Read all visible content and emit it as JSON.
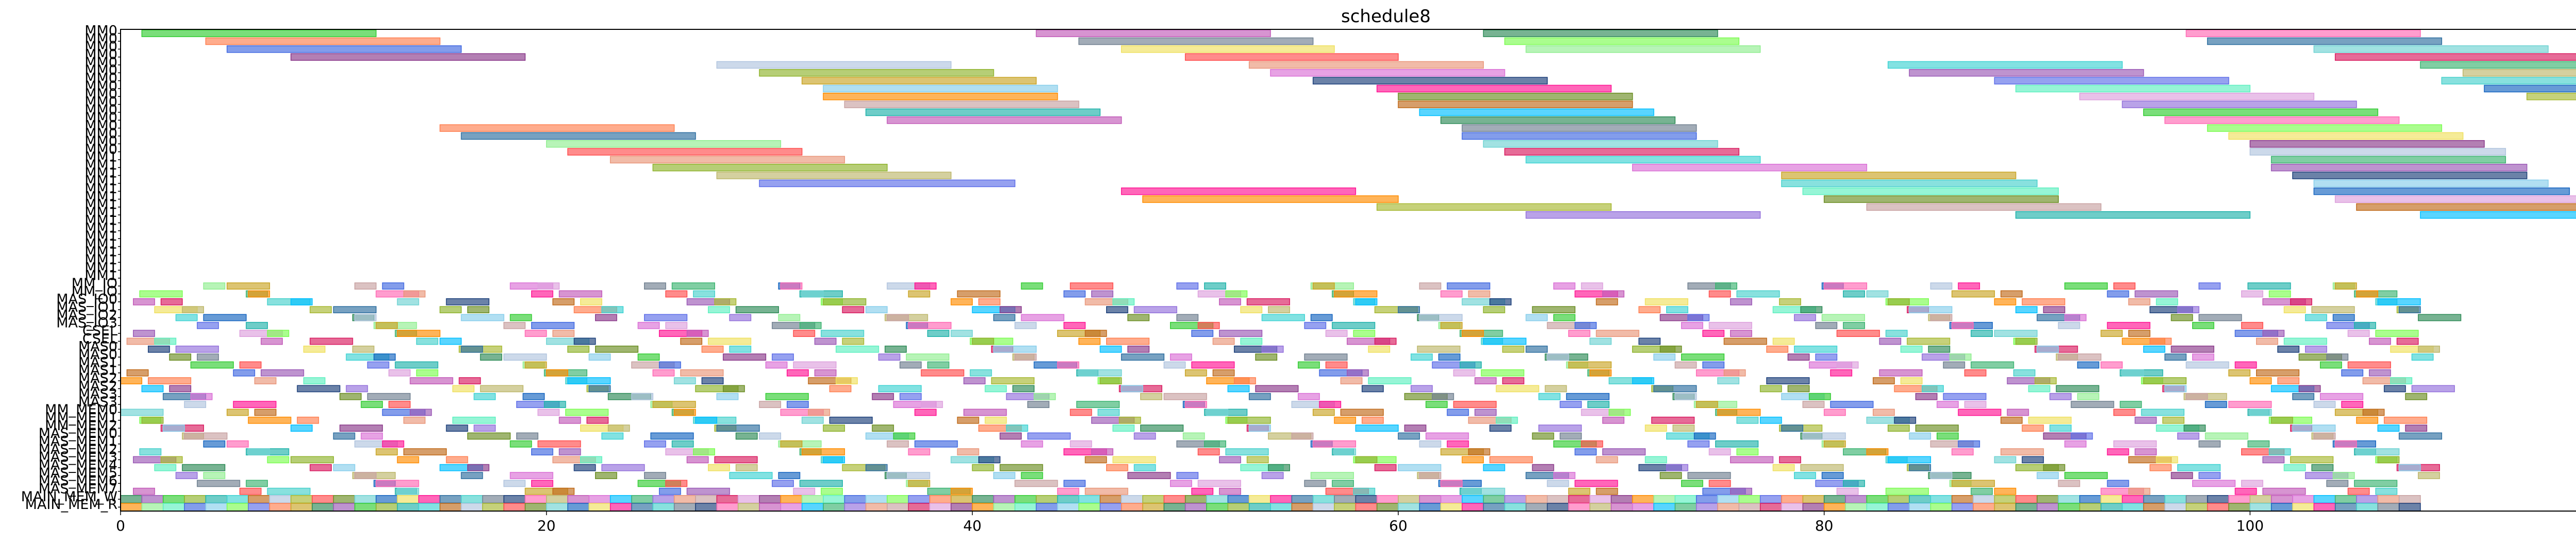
{
  "chart_data": {
    "type": "gantt",
    "title": "schedule8",
    "xlabel": "",
    "ylabel": "",
    "xlim": [
      0,
      118.5
    ],
    "x_ticks": [
      0,
      20,
      40,
      60,
      80,
      100
    ],
    "x_tick_labels": [
      "0",
      "20",
      "40",
      "60",
      "80",
      "100"
    ],
    "grid": false,
    "legend": "none",
    "rows": [
      "MM0",
      "MM0",
      "MM0",
      "MM0",
      "MM0",
      "MM0",
      "MM0",
      "MM0",
      "MM0",
      "MM0",
      "MM0",
      "MM0",
      "MM0",
      "MM0",
      "MM0",
      "MM0",
      "MM1",
      "MM1",
      "MM1",
      "MM1",
      "MM1",
      "MM1",
      "MM1",
      "MM1",
      "MM1",
      "MM1",
      "MM1",
      "MM1",
      "MM1",
      "MM1",
      "MM1",
      "MM1",
      "MM_IO",
      "MM_IO",
      "MAS_IO0",
      "MAS_IO1",
      "MAS_IO2",
      "MAS_IO3",
      "CSEL",
      "CSEL",
      "MAS0",
      "MAS0",
      "MAS1",
      "MAS1",
      "MAS2",
      "MAS2",
      "MAS3",
      "MAS3",
      "MM_MEM0",
      "MM_MEM1",
      "MM_MEM2",
      "MAS_MEM0",
      "MAS_MEM1",
      "MAS_MEM2",
      "MAS_MEM3",
      "MAS_MEM4",
      "MAS_MEM5",
      "MAS_MEM6",
      "MAS_MEM7",
      "MAIN_MEM_W",
      "MAIN_MEM_R"
    ],
    "palette": [
      "#6fd3d3",
      "#a7b832",
      "#3fd3d3",
      "#33cc33",
      "#c9a526",
      "#7cfc52",
      "#5ef0c0",
      "#8b3a8b",
      "#c8a2a2",
      "#3cb371",
      "#c25ab8",
      "#1c3f7a",
      "#2e6fa0",
      "#1565c0",
      "#ff4d4d",
      "#c06a1a",
      "#8fb32d",
      "#2e8b57",
      "#5e6ee8",
      "#4169e1",
      "#ff8c00",
      "#d81b60",
      "#9370db",
      "#da70d6",
      "#ff69b4",
      "#48d1cc",
      "#f0e060",
      "#6b8e23",
      "#b0c4de",
      "#20b2aa",
      "#9b59b6",
      "#ff7f50",
      "#87ceeb",
      "#90ee90",
      "#dda0dd",
      "#e9967a",
      "#00bfff",
      "#bdb76b",
      "#708090",
      "#ff1493"
    ],
    "pipeline_rows": {
      "starts": [
        [
          0,
          1
        ],
        [
          1,
          2
        ],
        [
          2,
          3
        ],
        [
          3,
          4
        ],
        [
          5,
          6
        ],
        [
          6,
          7
        ],
        [
          8,
          9
        ],
        [
          10,
          11
        ],
        [
          11,
          12
        ],
        [
          12,
          13
        ],
        [
          13,
          14
        ],
        [
          15,
          16
        ],
        [
          16,
          17
        ],
        [
          18,
          19
        ],
        [
          19,
          20
        ],
        [
          20,
          21
        ],
        [
          21,
          22
        ],
        [
          22,
          23
        ],
        [
          24,
          25
        ],
        [
          25,
          26
        ],
        [
          26,
          27
        ],
        [
          27,
          28
        ],
        [
          28,
          29
        ],
        [
          30,
          31
        ],
        [
          31,
          32
        ],
        [
          32,
          33
        ],
        [
          33,
          34
        ],
        [
          35,
          36
        ],
        [
          36,
          37
        ],
        [
          37,
          38
        ],
        [
          39,
          40
        ],
        [
          40,
          41
        ],
        [
          41,
          42
        ],
        [
          42,
          43
        ],
        [
          44,
          45
        ],
        [
          45,
          46
        ],
        [
          46,
          47
        ],
        [
          47,
          48
        ],
        [
          49,
          50
        ],
        [
          50,
          51
        ],
        [
          51,
          52
        ],
        [
          52,
          53
        ],
        [
          53,
          54
        ],
        [
          55,
          56
        ],
        [
          56,
          57
        ],
        [
          57,
          58
        ],
        [
          58,
          59
        ],
        [
          60,
          61
        ],
        [
          61,
          62
        ],
        [
          62,
          63
        ],
        [
          63,
          64
        ],
        [
          64,
          65
        ],
        [
          66,
          67
        ],
        [
          67,
          68
        ],
        [
          68,
          69
        ],
        [
          69,
          70
        ],
        [
          71,
          72
        ],
        [
          72,
          73
        ],
        [
          73,
          74
        ],
        [
          74,
          75
        ],
        [
          75,
          76
        ],
        [
          77,
          78
        ],
        [
          78,
          79
        ],
        [
          79,
          80
        ],
        [
          80,
          81
        ],
        [
          82,
          83
        ],
        [
          83,
          84
        ],
        [
          84,
          85
        ],
        [
          85,
          86
        ],
        [
          86,
          87
        ],
        [
          88,
          89
        ],
        [
          89,
          90
        ],
        [
          90,
          91
        ],
        [
          91,
          92
        ],
        [
          93,
          94
        ],
        [
          94,
          95
        ],
        [
          95,
          96
        ],
        [
          96,
          97
        ],
        [
          97,
          98
        ],
        [
          99,
          100
        ],
        [
          100,
          101
        ],
        [
          101,
          102
        ],
        [
          102,
          103
        ],
        [
          103,
          104
        ],
        [
          104,
          105
        ],
        [
          105,
          106
        ],
        [
          106,
          107
        ],
        [
          107,
          108
        ]
      ]
    },
    "long_tasks": [
      {
        "row": 0,
        "start": 1,
        "end": 12
      },
      {
        "row": 0,
        "start": 43,
        "end": 54
      },
      {
        "row": 0,
        "start": 64,
        "end": 75
      },
      {
        "row": 0,
        "start": 97,
        "end": 108
      },
      {
        "row": 1,
        "start": 4,
        "end": 15
      },
      {
        "row": 1,
        "start": 45,
        "end": 56
      },
      {
        "row": 1,
        "start": 65,
        "end": 76
      },
      {
        "row": 1,
        "start": 98,
        "end": 109
      },
      {
        "row": 2,
        "start": 5,
        "end": 16
      },
      {
        "row": 2,
        "start": 47,
        "end": 57
      },
      {
        "row": 2,
        "start": 66,
        "end": 77
      },
      {
        "row": 2,
        "start": 103,
        "end": 114
      },
      {
        "row": 3,
        "start": 8,
        "end": 19
      },
      {
        "row": 3,
        "start": 50,
        "end": 60
      },
      {
        "row": 3,
        "start": 104,
        "end": 116
      },
      {
        "row": 4,
        "start": 28,
        "end": 39
      },
      {
        "row": 4,
        "start": 53,
        "end": 64
      },
      {
        "row": 4,
        "start": 83,
        "end": 94
      },
      {
        "row": 4,
        "start": 108,
        "end": 117
      },
      {
        "row": 5,
        "start": 30,
        "end": 41
      },
      {
        "row": 5,
        "start": 54,
        "end": 65
      },
      {
        "row": 5,
        "start": 84,
        "end": 95
      },
      {
        "row": 5,
        "start": 110,
        "end": 118
      },
      {
        "row": 6,
        "start": 32,
        "end": 43
      },
      {
        "row": 6,
        "start": 56,
        "end": 67
      },
      {
        "row": 6,
        "start": 88,
        "end": 99
      },
      {
        "row": 6,
        "start": 109,
        "end": 118
      },
      {
        "row": 7,
        "start": 33,
        "end": 44
      },
      {
        "row": 7,
        "start": 59,
        "end": 70
      },
      {
        "row": 7,
        "start": 89,
        "end": 100
      },
      {
        "row": 7,
        "start": 111,
        "end": 118
      },
      {
        "row": 8,
        "start": 33,
        "end": 44
      },
      {
        "row": 8,
        "start": 60,
        "end": 71
      },
      {
        "row": 8,
        "start": 92,
        "end": 103
      },
      {
        "row": 8,
        "start": 113,
        "end": 118
      },
      {
        "row": 9,
        "start": 34,
        "end": 45
      },
      {
        "row": 9,
        "start": 60,
        "end": 71
      },
      {
        "row": 9,
        "start": 94,
        "end": 105
      },
      {
        "row": 10,
        "start": 35,
        "end": 46
      },
      {
        "row": 10,
        "start": 61,
        "end": 72
      },
      {
        "row": 10,
        "start": 95,
        "end": 106
      },
      {
        "row": 11,
        "start": 36,
        "end": 47
      },
      {
        "row": 11,
        "start": 62,
        "end": 73
      },
      {
        "row": 11,
        "start": 96,
        "end": 107
      },
      {
        "row": 12,
        "start": 15,
        "end": 26
      },
      {
        "row": 12,
        "start": 63,
        "end": 74
      },
      {
        "row": 12,
        "start": 98,
        "end": 109
      },
      {
        "row": 13,
        "start": 16,
        "end": 27
      },
      {
        "row": 13,
        "start": 63,
        "end": 74
      },
      {
        "row": 13,
        "start": 99,
        "end": 110
      },
      {
        "row": 14,
        "start": 20,
        "end": 31
      },
      {
        "row": 14,
        "start": 64,
        "end": 75
      },
      {
        "row": 14,
        "start": 100,
        "end": 111
      },
      {
        "row": 15,
        "start": 21,
        "end": 32
      },
      {
        "row": 15,
        "start": 65,
        "end": 76
      },
      {
        "row": 15,
        "start": 100,
        "end": 112
      },
      {
        "row": 16,
        "start": 23,
        "end": 34
      },
      {
        "row": 16,
        "start": 66,
        "end": 77
      },
      {
        "row": 16,
        "start": 101,
        "end": 112
      },
      {
        "row": 17,
        "start": 25,
        "end": 36
      },
      {
        "row": 17,
        "start": 71,
        "end": 82
      },
      {
        "row": 17,
        "start": 101,
        "end": 113
      },
      {
        "row": 18,
        "start": 28,
        "end": 39
      },
      {
        "row": 18,
        "start": 78,
        "end": 89
      },
      {
        "row": 18,
        "start": 102,
        "end": 113
      },
      {
        "row": 19,
        "start": 30,
        "end": 42
      },
      {
        "row": 19,
        "start": 78,
        "end": 90
      },
      {
        "row": 19,
        "start": 103,
        "end": 114
      },
      {
        "row": 20,
        "start": 47,
        "end": 58
      },
      {
        "row": 20,
        "start": 79,
        "end": 91
      },
      {
        "row": 20,
        "start": 103,
        "end": 115
      },
      {
        "row": 21,
        "start": 48,
        "end": 60
      },
      {
        "row": 21,
        "start": 80,
        "end": 91
      },
      {
        "row": 21,
        "start": 104,
        "end": 116
      },
      {
        "row": 22,
        "start": 59,
        "end": 70
      },
      {
        "row": 22,
        "start": 82,
        "end": 93
      },
      {
        "row": 22,
        "start": 105,
        "end": 117
      },
      {
        "row": 23,
        "start": 66,
        "end": 77
      },
      {
        "row": 23,
        "start": 89,
        "end": 100
      },
      {
        "row": 23,
        "start": 108,
        "end": 120
      }
    ]
  }
}
